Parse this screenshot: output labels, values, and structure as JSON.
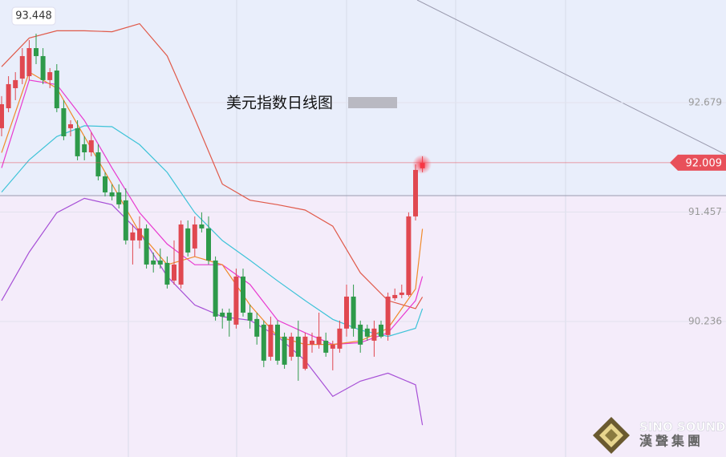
{
  "chart_data": {
    "type": "candlestick",
    "title": "美元指数日线图",
    "ylim": [
      88.724,
      93.824
    ],
    "yticks": [
      92.679,
      91.457,
      90.236
    ],
    "grid": true,
    "up_color": "#e04850",
    "down_color": "#2e9a4a",
    "high_label": 93.448,
    "last_price": 92.009,
    "last_color": "#e8505a",
    "candles": [
      [
        92.393,
        92.751,
        92.303,
        92.661
      ],
      [
        92.616,
        92.974,
        92.572,
        92.885
      ],
      [
        92.84,
        93.019,
        92.706,
        92.93
      ],
      [
        92.947,
        93.287,
        92.885,
        93.198
      ],
      [
        92.974,
        93.377,
        92.93,
        93.287
      ],
      [
        93.287,
        93.448,
        93.108,
        93.198
      ],
      [
        93.198,
        93.287,
        92.885,
        92.93
      ],
      [
        92.93,
        93.064,
        92.84,
        93.019
      ],
      [
        93.037,
        93.108,
        92.572,
        92.616
      ],
      [
        92.616,
        92.706,
        92.259,
        92.303
      ],
      [
        92.393,
        92.482,
        92.303,
        92.437
      ],
      [
        92.393,
        92.482,
        92.035,
        92.08
      ],
      [
        92.214,
        92.303,
        92.035,
        92.124
      ],
      [
        92.124,
        92.348,
        92.08,
        92.259
      ],
      [
        92.124,
        92.214,
        91.811,
        91.856
      ],
      [
        91.856,
        91.901,
        91.632,
        91.677
      ],
      [
        91.677,
        91.767,
        91.588,
        91.632
      ],
      [
        91.677,
        91.767,
        91.498,
        91.543
      ],
      [
        91.588,
        91.722,
        91.096,
        91.141
      ],
      [
        91.141,
        91.319,
        90.872,
        91.23
      ],
      [
        91.141,
        91.409,
        91.051,
        91.275
      ],
      [
        91.275,
        91.319,
        90.827,
        90.872
      ],
      [
        90.917,
        91.006,
        90.783,
        90.872
      ],
      [
        90.917,
        91.051,
        90.827,
        90.872
      ],
      [
        90.89,
        90.962,
        90.604,
        90.648
      ],
      [
        90.693,
        91.141,
        90.648,
        90.872
      ],
      [
        90.648,
        91.364,
        90.604,
        91.319
      ],
      [
        91.275,
        91.364,
        90.962,
        91.006
      ],
      [
        91.051,
        91.409,
        90.962,
        91.319
      ],
      [
        91.319,
        91.454,
        91.23,
        91.275
      ],
      [
        91.275,
        91.409,
        90.872,
        90.917
      ],
      [
        90.917,
        90.962,
        90.246,
        90.291
      ],
      [
        90.335,
        90.38,
        90.157,
        90.291
      ],
      [
        90.335,
        90.38,
        90.067,
        90.246
      ],
      [
        90.201,
        90.827,
        90.157,
        90.738
      ],
      [
        90.738,
        90.827,
        90.291,
        90.335
      ],
      [
        90.335,
        90.425,
        90.157,
        90.246
      ],
      [
        90.264,
        90.335,
        89.978,
        90.067
      ],
      [
        90.201,
        90.246,
        89.727,
        89.799
      ],
      [
        89.843,
        90.291,
        89.799,
        90.201
      ],
      [
        90.201,
        90.246,
        89.754,
        89.799
      ],
      [
        90.067,
        90.112,
        89.709,
        89.754
      ],
      [
        89.843,
        90.112,
        89.799,
        90.067
      ],
      [
        90.067,
        90.246,
        89.575,
        89.843
      ],
      [
        89.709,
        90.112,
        89.691,
        90.067
      ],
      [
        89.978,
        90.112,
        89.888,
        90.022
      ],
      [
        89.978,
        90.335,
        89.933,
        90.067
      ],
      [
        90.022,
        90.112,
        89.843,
        89.888
      ],
      [
        89.933,
        90.022,
        89.691,
        89.978
      ],
      [
        89.933,
        90.246,
        89.888,
        90.157
      ],
      [
        90.157,
        90.648,
        90.067,
        90.514
      ],
      [
        90.514,
        90.648,
        90.067,
        90.157
      ],
      [
        90.201,
        90.246,
        89.888,
        89.978
      ],
      [
        90.157,
        90.201,
        90.022,
        90.067
      ],
      [
        90.022,
        90.246,
        89.843,
        90.157
      ],
      [
        90.201,
        90.246,
        90.049,
        90.067
      ],
      [
        90.085,
        90.559,
        90.022,
        90.514
      ],
      [
        90.496,
        90.604,
        90.47,
        90.532
      ],
      [
        90.532,
        90.648,
        90.496,
        90.559
      ],
      [
        90.532,
        91.454,
        90.514,
        91.409
      ],
      [
        91.409,
        91.99,
        91.364,
        91.928
      ],
      [
        91.946,
        92.08,
        91.901,
        92.008
      ]
    ],
    "lines": [
      {
        "color": "#e05a4a",
        "x": [
          0,
          4,
          8,
          12,
          16,
          20,
          24,
          28,
          32,
          36,
          40,
          44,
          48,
          52,
          56,
          60,
          61
        ],
        "values": [
          93.08,
          93.4,
          93.48,
          93.48,
          93.47,
          93.56,
          93.2,
          92.5,
          91.77,
          91.59,
          91.54,
          91.48,
          91.3,
          90.78,
          90.47,
          90.38,
          90.51
        ]
      },
      {
        "color": "#3ec3d8",
        "x": [
          0,
          4,
          8,
          12,
          16,
          20,
          24,
          28,
          32,
          36,
          40,
          44,
          48,
          52,
          56,
          60,
          61
        ],
        "values": [
          91.68,
          92.04,
          92.3,
          92.42,
          92.41,
          92.21,
          91.9,
          91.45,
          91.14,
          90.92,
          90.69,
          90.47,
          90.26,
          90.14,
          90.07,
          90.16,
          90.38
        ]
      },
      {
        "color": "#a64fd6",
        "x": [
          0,
          4,
          8,
          12,
          16,
          20,
          24,
          28,
          32,
          36,
          40,
          44,
          48,
          52,
          56,
          60,
          61
        ],
        "values": [
          90.47,
          91.01,
          91.45,
          91.61,
          91.54,
          91.23,
          90.74,
          90.42,
          90.29,
          90.25,
          90.07,
          89.8,
          89.4,
          89.57,
          89.66,
          89.53,
          89.08
        ]
      },
      {
        "color": "#e83ad0",
        "x": [
          0,
          4,
          8,
          12,
          16,
          20,
          24,
          28,
          32,
          36,
          40,
          44,
          48,
          52,
          56,
          60,
          61
        ],
        "values": [
          91.95,
          92.93,
          92.88,
          92.48,
          91.95,
          91.45,
          91.1,
          90.87,
          90.87,
          90.65,
          90.25,
          90.11,
          89.98,
          90.0,
          90.11,
          90.47,
          90.74
        ]
      },
      {
        "color": "#f08a2a",
        "x": [
          0,
          4,
          8,
          12,
          16,
          20,
          24,
          28,
          32,
          36,
          40,
          44,
          48,
          52,
          56,
          60,
          61
        ],
        "values": [
          92.12,
          93.02,
          92.84,
          92.3,
          91.77,
          91.23,
          90.87,
          90.96,
          90.87,
          90.42,
          90.07,
          89.98,
          89.98,
          90.02,
          90.16,
          90.6,
          91.27
        ]
      }
    ]
  },
  "logo": {
    "en": "SINO SOUND",
    "zh": "漢聲集團"
  }
}
